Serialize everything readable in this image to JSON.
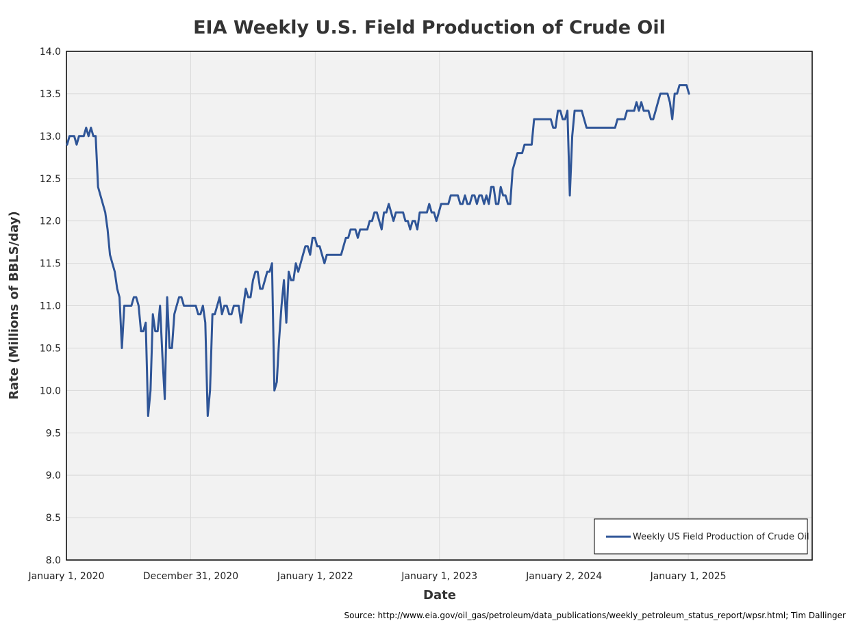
{
  "colors": {
    "series": "#2F5597",
    "plot_background": "#F2F2F2",
    "gridline": "#D9D9D9",
    "border": "#000000"
  },
  "chart_data": {
    "type": "line",
    "title": "EIA Weekly U.S. Field Production of Crude Oil",
    "xlabel": "Date",
    "ylabel": "Rate (Millions of BBLS/day)",
    "source": "Source: http://www.eia.gov/oil_gas/petroleum/data_publications/weekly_petroleum_status_report/wpsr.html; Tim Dallinger",
    "ylim": [
      8.0,
      14.0
    ],
    "yticks": [
      "8.0",
      "8.5",
      "9.0",
      "9.5",
      "10.0",
      "10.5",
      "11.0",
      "11.5",
      "12.0",
      "12.5",
      "13.0",
      "13.5",
      "14.0"
    ],
    "xlim": [
      "2020-01-01",
      "2025-12-31"
    ],
    "xtick_dates": [
      "2020-01-01",
      "2020-12-31",
      "2022-01-01",
      "2023-01-01",
      "2024-01-02",
      "2025-01-01"
    ],
    "xtick_labels": [
      "January 1, 2020",
      "December 31, 2020",
      "January 1, 2022",
      "January 1, 2023",
      "January 2, 2024",
      "January 1, 2025"
    ],
    "grid": true,
    "legend_position": "bottom-right",
    "series": [
      {
        "name": "Weekly US Field Production of Crude Oil",
        "points": [
          [
            "2020-01-03",
            12.9
          ],
          [
            "2020-01-10",
            13.0
          ],
          [
            "2020-01-17",
            13.0
          ],
          [
            "2020-01-24",
            13.0
          ],
          [
            "2020-01-31",
            12.9
          ],
          [
            "2020-02-07",
            13.0
          ],
          [
            "2020-02-14",
            13.0
          ],
          [
            "2020-02-21",
            13.0
          ],
          [
            "2020-02-28",
            13.1
          ],
          [
            "2020-03-06",
            13.0
          ],
          [
            "2020-03-13",
            13.1
          ],
          [
            "2020-03-20",
            13.0
          ],
          [
            "2020-03-27",
            13.0
          ],
          [
            "2020-04-03",
            12.4
          ],
          [
            "2020-04-10",
            12.3
          ],
          [
            "2020-04-17",
            12.2
          ],
          [
            "2020-04-24",
            12.1
          ],
          [
            "2020-05-01",
            11.9
          ],
          [
            "2020-05-08",
            11.6
          ],
          [
            "2020-05-15",
            11.5
          ],
          [
            "2020-05-22",
            11.4
          ],
          [
            "2020-05-29",
            11.2
          ],
          [
            "2020-06-05",
            11.1
          ],
          [
            "2020-06-12",
            10.5
          ],
          [
            "2020-06-19",
            11.0
          ],
          [
            "2020-06-26",
            11.0
          ],
          [
            "2020-07-03",
            11.0
          ],
          [
            "2020-07-10",
            11.0
          ],
          [
            "2020-07-17",
            11.1
          ],
          [
            "2020-07-24",
            11.1
          ],
          [
            "2020-07-31",
            11.0
          ],
          [
            "2020-08-07",
            10.7
          ],
          [
            "2020-08-14",
            10.7
          ],
          [
            "2020-08-21",
            10.8
          ],
          [
            "2020-08-28",
            9.7
          ],
          [
            "2020-09-04",
            10.0
          ],
          [
            "2020-09-11",
            10.9
          ],
          [
            "2020-09-18",
            10.7
          ],
          [
            "2020-09-25",
            10.7
          ],
          [
            "2020-10-02",
            11.0
          ],
          [
            "2020-10-09",
            10.4
          ],
          [
            "2020-10-16",
            9.9
          ],
          [
            "2020-10-23",
            11.1
          ],
          [
            "2020-10-30",
            10.5
          ],
          [
            "2020-11-06",
            10.5
          ],
          [
            "2020-11-13",
            10.9
          ],
          [
            "2020-11-20",
            11.0
          ],
          [
            "2020-11-27",
            11.1
          ],
          [
            "2020-12-04",
            11.1
          ],
          [
            "2020-12-11",
            11.0
          ],
          [
            "2020-12-18",
            11.0
          ],
          [
            "2020-12-25",
            11.0
          ],
          [
            "2021-01-01",
            11.0
          ],
          [
            "2021-01-08",
            11.0
          ],
          [
            "2021-01-15",
            11.0
          ],
          [
            "2021-01-22",
            10.9
          ],
          [
            "2021-01-29",
            10.9
          ],
          [
            "2021-02-05",
            11.0
          ],
          [
            "2021-02-12",
            10.8
          ],
          [
            "2021-02-19",
            9.7
          ],
          [
            "2021-02-26",
            10.0
          ],
          [
            "2021-03-05",
            10.9
          ],
          [
            "2021-03-12",
            10.9
          ],
          [
            "2021-03-19",
            11.0
          ],
          [
            "2021-03-26",
            11.1
          ],
          [
            "2021-04-02",
            10.9
          ],
          [
            "2021-04-09",
            11.0
          ],
          [
            "2021-04-16",
            11.0
          ],
          [
            "2021-04-23",
            10.9
          ],
          [
            "2021-04-30",
            10.9
          ],
          [
            "2021-05-07",
            11.0
          ],
          [
            "2021-05-14",
            11.0
          ],
          [
            "2021-05-21",
            11.0
          ],
          [
            "2021-05-28",
            10.8
          ],
          [
            "2021-06-04",
            11.0
          ],
          [
            "2021-06-11",
            11.2
          ],
          [
            "2021-06-18",
            11.1
          ],
          [
            "2021-06-25",
            11.1
          ],
          [
            "2021-07-02",
            11.3
          ],
          [
            "2021-07-09",
            11.4
          ],
          [
            "2021-07-16",
            11.4
          ],
          [
            "2021-07-23",
            11.2
          ],
          [
            "2021-07-30",
            11.2
          ],
          [
            "2021-08-06",
            11.3
          ],
          [
            "2021-08-13",
            11.4
          ],
          [
            "2021-08-20",
            11.4
          ],
          [
            "2021-08-27",
            11.5
          ],
          [
            "2021-09-03",
            10.0
          ],
          [
            "2021-09-10",
            10.1
          ],
          [
            "2021-09-17",
            10.6
          ],
          [
            "2021-09-24",
            11.0
          ],
          [
            "2021-10-01",
            11.3
          ],
          [
            "2021-10-08",
            10.8
          ],
          [
            "2021-10-15",
            11.4
          ],
          [
            "2021-10-22",
            11.3
          ],
          [
            "2021-10-29",
            11.3
          ],
          [
            "2021-11-05",
            11.5
          ],
          [
            "2021-11-12",
            11.4
          ],
          [
            "2021-11-19",
            11.5
          ],
          [
            "2021-11-26",
            11.6
          ],
          [
            "2021-12-03",
            11.7
          ],
          [
            "2021-12-10",
            11.7
          ],
          [
            "2021-12-17",
            11.6
          ],
          [
            "2021-12-24",
            11.8
          ],
          [
            "2021-12-31",
            11.8
          ],
          [
            "2022-01-07",
            11.7
          ],
          [
            "2022-01-14",
            11.7
          ],
          [
            "2022-01-21",
            11.6
          ],
          [
            "2022-01-28",
            11.5
          ],
          [
            "2022-02-04",
            11.6
          ],
          [
            "2022-02-11",
            11.6
          ],
          [
            "2022-02-18",
            11.6
          ],
          [
            "2022-02-25",
            11.6
          ],
          [
            "2022-03-04",
            11.6
          ],
          [
            "2022-03-11",
            11.6
          ],
          [
            "2022-03-18",
            11.6
          ],
          [
            "2022-03-25",
            11.7
          ],
          [
            "2022-04-01",
            11.8
          ],
          [
            "2022-04-08",
            11.8
          ],
          [
            "2022-04-15",
            11.9
          ],
          [
            "2022-04-22",
            11.9
          ],
          [
            "2022-04-29",
            11.9
          ],
          [
            "2022-05-06",
            11.8
          ],
          [
            "2022-05-13",
            11.9
          ],
          [
            "2022-05-20",
            11.9
          ],
          [
            "2022-05-27",
            11.9
          ],
          [
            "2022-06-03",
            11.9
          ],
          [
            "2022-06-10",
            12.0
          ],
          [
            "2022-06-17",
            12.0
          ],
          [
            "2022-06-24",
            12.1
          ],
          [
            "2022-07-01",
            12.1
          ],
          [
            "2022-07-08",
            12.0
          ],
          [
            "2022-07-15",
            11.9
          ],
          [
            "2022-07-22",
            12.1
          ],
          [
            "2022-07-29",
            12.1
          ],
          [
            "2022-08-05",
            12.2
          ],
          [
            "2022-08-12",
            12.1
          ],
          [
            "2022-08-19",
            12.0
          ],
          [
            "2022-08-26",
            12.1
          ],
          [
            "2022-09-02",
            12.1
          ],
          [
            "2022-09-09",
            12.1
          ],
          [
            "2022-09-16",
            12.1
          ],
          [
            "2022-09-23",
            12.0
          ],
          [
            "2022-09-30",
            12.0
          ],
          [
            "2022-10-07",
            11.9
          ],
          [
            "2022-10-14",
            12.0
          ],
          [
            "2022-10-21",
            12.0
          ],
          [
            "2022-10-28",
            11.9
          ],
          [
            "2022-11-04",
            12.1
          ],
          [
            "2022-11-11",
            12.1
          ],
          [
            "2022-11-18",
            12.1
          ],
          [
            "2022-11-25",
            12.1
          ],
          [
            "2022-12-02",
            12.2
          ],
          [
            "2022-12-09",
            12.1
          ],
          [
            "2022-12-16",
            12.1
          ],
          [
            "2022-12-23",
            12.0
          ],
          [
            "2022-12-30",
            12.1
          ],
          [
            "2023-01-06",
            12.2
          ],
          [
            "2023-01-13",
            12.2
          ],
          [
            "2023-01-20",
            12.2
          ],
          [
            "2023-01-27",
            12.2
          ],
          [
            "2023-02-03",
            12.3
          ],
          [
            "2023-02-10",
            12.3
          ],
          [
            "2023-02-17",
            12.3
          ],
          [
            "2023-02-24",
            12.3
          ],
          [
            "2023-03-03",
            12.2
          ],
          [
            "2023-03-10",
            12.2
          ],
          [
            "2023-03-17",
            12.3
          ],
          [
            "2023-03-24",
            12.2
          ],
          [
            "2023-03-31",
            12.2
          ],
          [
            "2023-04-07",
            12.3
          ],
          [
            "2023-04-14",
            12.3
          ],
          [
            "2023-04-21",
            12.2
          ],
          [
            "2023-04-28",
            12.3
          ],
          [
            "2023-05-05",
            12.3
          ],
          [
            "2023-05-12",
            12.2
          ],
          [
            "2023-05-19",
            12.3
          ],
          [
            "2023-05-26",
            12.2
          ],
          [
            "2023-06-02",
            12.4
          ],
          [
            "2023-06-09",
            12.4
          ],
          [
            "2023-06-16",
            12.2
          ],
          [
            "2023-06-23",
            12.2
          ],
          [
            "2023-06-30",
            12.4
          ],
          [
            "2023-07-07",
            12.3
          ],
          [
            "2023-07-14",
            12.3
          ],
          [
            "2023-07-21",
            12.2
          ],
          [
            "2023-07-28",
            12.2
          ],
          [
            "2023-08-04",
            12.6
          ],
          [
            "2023-08-11",
            12.7
          ],
          [
            "2023-08-18",
            12.8
          ],
          [
            "2023-08-25",
            12.8
          ],
          [
            "2023-09-01",
            12.8
          ],
          [
            "2023-09-08",
            12.9
          ],
          [
            "2023-09-15",
            12.9
          ],
          [
            "2023-09-22",
            12.9
          ],
          [
            "2023-09-29",
            12.9
          ],
          [
            "2023-10-06",
            13.2
          ],
          [
            "2023-10-13",
            13.2
          ],
          [
            "2023-10-20",
            13.2
          ],
          [
            "2023-10-27",
            13.2
          ],
          [
            "2023-11-03",
            13.2
          ],
          [
            "2023-11-10",
            13.2
          ],
          [
            "2023-11-17",
            13.2
          ],
          [
            "2023-11-24",
            13.2
          ],
          [
            "2023-12-01",
            13.1
          ],
          [
            "2023-12-08",
            13.1
          ],
          [
            "2023-12-15",
            13.3
          ],
          [
            "2023-12-22",
            13.3
          ],
          [
            "2023-12-29",
            13.2
          ],
          [
            "2024-01-05",
            13.2
          ],
          [
            "2024-01-12",
            13.3
          ],
          [
            "2024-01-19",
            12.3
          ],
          [
            "2024-01-26",
            13.0
          ],
          [
            "2024-02-02",
            13.3
          ],
          [
            "2024-02-09",
            13.3
          ],
          [
            "2024-02-16",
            13.3
          ],
          [
            "2024-02-23",
            13.3
          ],
          [
            "2024-03-01",
            13.2
          ],
          [
            "2024-03-08",
            13.1
          ],
          [
            "2024-03-15",
            13.1
          ],
          [
            "2024-03-22",
            13.1
          ],
          [
            "2024-03-29",
            13.1
          ],
          [
            "2024-04-05",
            13.1
          ],
          [
            "2024-04-12",
            13.1
          ],
          [
            "2024-04-19",
            13.1
          ],
          [
            "2024-04-26",
            13.1
          ],
          [
            "2024-05-03",
            13.1
          ],
          [
            "2024-05-10",
            13.1
          ],
          [
            "2024-05-17",
            13.1
          ],
          [
            "2024-05-24",
            13.1
          ],
          [
            "2024-05-31",
            13.1
          ],
          [
            "2024-06-07",
            13.2
          ],
          [
            "2024-06-14",
            13.2
          ],
          [
            "2024-06-21",
            13.2
          ],
          [
            "2024-06-28",
            13.2
          ],
          [
            "2024-07-05",
            13.3
          ],
          [
            "2024-07-12",
            13.3
          ],
          [
            "2024-07-19",
            13.3
          ],
          [
            "2024-07-26",
            13.3
          ],
          [
            "2024-08-02",
            13.4
          ],
          [
            "2024-08-09",
            13.3
          ],
          [
            "2024-08-16",
            13.4
          ],
          [
            "2024-08-23",
            13.3
          ],
          [
            "2024-08-30",
            13.3
          ],
          [
            "2024-09-06",
            13.3
          ],
          [
            "2024-09-13",
            13.2
          ],
          [
            "2024-09-20",
            13.2
          ],
          [
            "2024-09-27",
            13.3
          ],
          [
            "2024-10-04",
            13.4
          ],
          [
            "2024-10-11",
            13.5
          ],
          [
            "2024-10-18",
            13.5
          ],
          [
            "2024-10-25",
            13.5
          ],
          [
            "2024-11-01",
            13.5
          ],
          [
            "2024-11-08",
            13.4
          ],
          [
            "2024-11-15",
            13.2
          ],
          [
            "2024-11-22",
            13.5
          ],
          [
            "2024-11-29",
            13.5
          ],
          [
            "2024-12-06",
            13.6
          ],
          [
            "2024-12-13",
            13.6
          ],
          [
            "2024-12-20",
            13.6
          ],
          [
            "2024-12-27",
            13.6
          ],
          [
            "2025-01-03",
            13.5
          ]
        ]
      }
    ]
  }
}
